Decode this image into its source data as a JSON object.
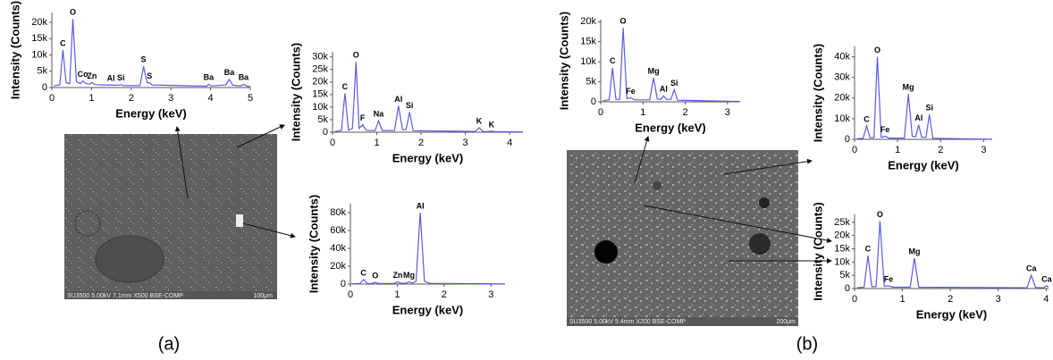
{
  "chart_data": [
    {
      "type": "line",
      "y_label": "Intensity (Counts)",
      "x_label": "Energy (keV)",
      "color": "#5a5ae6",
      "xlim": [
        0,
        5
      ],
      "ylim": [
        0,
        23000
      ],
      "xticks": [
        0,
        1,
        2,
        3,
        4,
        5
      ],
      "yticks": [
        0,
        {
          "value": 5000,
          "label": "5k"
        },
        {
          "value": 10000,
          "label": "10k"
        },
        {
          "value": 15000,
          "label": "15k"
        },
        {
          "value": 20000,
          "label": "20k"
        }
      ],
      "x": [
        0.05,
        0.2,
        0.28,
        0.36,
        0.45,
        0.53,
        0.62,
        0.72,
        0.78,
        0.86,
        0.95,
        1.01,
        1.08,
        1.42,
        1.49,
        1.56,
        1.68,
        1.74,
        1.8,
        2.22,
        2.31,
        2.4,
        2.46,
        2.52,
        3.9,
        3.95,
        4.02,
        4.38,
        4.47,
        4.56,
        4.76,
        4.83,
        4.92,
        5.0
      ],
      "values": [
        500,
        800,
        11500,
        1500,
        1200,
        21000,
        1800,
        1200,
        2000,
        1200,
        1000,
        1500,
        900,
        700,
        800,
        700,
        700,
        900,
        600,
        600,
        6500,
        1500,
        1500,
        800,
        400,
        1000,
        500,
        800,
        2500,
        700,
        500,
        1000,
        400,
        300
      ],
      "labels": [
        null,
        null,
        "C",
        null,
        null,
        "O",
        null,
        null,
        "Co",
        null,
        null,
        "Zn",
        null,
        null,
        "Al",
        null,
        null,
        "Si",
        null,
        null,
        "S",
        null,
        "S",
        null,
        null,
        "Ba",
        null,
        null,
        "Ba",
        null,
        null,
        "Ba",
        null,
        null
      ]
    },
    {
      "type": "line",
      "y_label": "Intensity (Counts)",
      "x_label": "Energy (keV)",
      "color": "#5a5ae6",
      "xlim": [
        0,
        4.3
      ],
      "ylim": [
        0,
        32000
      ],
      "xticks": [
        0,
        1,
        2,
        3,
        4
      ],
      "yticks": [
        0,
        {
          "value": 5000,
          "label": "5k"
        },
        {
          "value": 10000,
          "label": "10k"
        },
        {
          "value": 15000,
          "label": "15k"
        },
        {
          "value": 20000,
          "label": "20k"
        },
        {
          "value": 25000,
          "label": "25k"
        },
        {
          "value": 30000,
          "label": "30k"
        }
      ],
      "x": [
        0.05,
        0.2,
        0.28,
        0.36,
        0.45,
        0.53,
        0.6,
        0.68,
        0.76,
        0.96,
        1.04,
        1.12,
        1.4,
        1.49,
        1.58,
        1.66,
        1.74,
        1.82,
        3.22,
        3.31,
        3.4,
        3.52,
        3.59,
        3.66,
        4.3
      ],
      "values": [
        300,
        600,
        15500,
        800,
        1500,
        28000,
        1500,
        3000,
        800,
        600,
        4500,
        700,
        600,
        10500,
        1000,
        1000,
        8000,
        600,
        300,
        1800,
        300,
        200,
        400,
        200,
        100
      ],
      "labels": [
        null,
        null,
        "C",
        null,
        null,
        "O",
        null,
        "F",
        null,
        null,
        "Na",
        null,
        null,
        "Al",
        null,
        null,
        "Si",
        null,
        null,
        "K",
        null,
        null,
        "K",
        null,
        null
      ]
    },
    {
      "type": "line",
      "y_label": "Intensity (Counts)",
      "x_label": "Energy (keV)",
      "color": "#5a5ae6",
      "xlim": [
        0,
        3.3
      ],
      "ylim": [
        0,
        90000
      ],
      "xticks": [
        0,
        1,
        2,
        3
      ],
      "yticks": [
        0,
        {
          "value": 20000,
          "label": "20k"
        },
        {
          "value": 40000,
          "label": "40k"
        },
        {
          "value": 60000,
          "label": "60k"
        },
        {
          "value": 80000,
          "label": "80k"
        }
      ],
      "x": [
        0.05,
        0.2,
        0.28,
        0.36,
        0.45,
        0.53,
        0.6,
        0.94,
        1.01,
        1.08,
        1.18,
        1.25,
        1.32,
        1.4,
        1.49,
        1.58,
        1.7,
        3.3
      ],
      "values": [
        300,
        500,
        5000,
        600,
        600,
        2000,
        600,
        800,
        2500,
        900,
        900,
        2500,
        1200,
        3000,
        80000,
        3000,
        800,
        200
      ],
      "labels": [
        null,
        null,
        "C",
        null,
        null,
        "O",
        null,
        null,
        "Zn",
        null,
        null,
        "Mg",
        null,
        null,
        "Al",
        null,
        null,
        null
      ]
    },
    {
      "type": "line",
      "y_label": "Intensity (Counts)",
      "x_label": "Energy (keV)",
      "color": "#5a5ae6",
      "xlim": [
        0,
        3.3
      ],
      "ylim": [
        0,
        20500
      ],
      "xticks": [
        0,
        1,
        2,
        3
      ],
      "yticks": [
        0,
        {
          "value": 5000,
          "label": "5k"
        },
        {
          "value": 10000,
          "label": "10k"
        },
        {
          "value": 15000,
          "label": "15k"
        },
        {
          "value": 20000,
          "label": "20k"
        }
      ],
      "x": [
        0.05,
        0.2,
        0.28,
        0.36,
        0.45,
        0.53,
        0.62,
        0.71,
        0.8,
        1.16,
        1.25,
        1.34,
        1.42,
        1.49,
        1.56,
        1.66,
        1.74,
        1.82,
        3.3
      ],
      "values": [
        300,
        500,
        8500,
        600,
        600,
        18500,
        800,
        1000,
        500,
        500,
        6000,
        700,
        600,
        1500,
        600,
        600,
        3000,
        400,
        100
      ],
      "labels": [
        null,
        null,
        "C",
        null,
        null,
        "O",
        null,
        "Fe",
        null,
        null,
        "Mg",
        null,
        null,
        "Al",
        null,
        null,
        "Si",
        null,
        null
      ]
    },
    {
      "type": "line",
      "y_label": "Intensity (Counts)",
      "x_label": "Energy (keV)",
      "color": "#5a5ae6",
      "xlim": [
        0,
        3.2
      ],
      "ylim": [
        0,
        45000
      ],
      "xticks": [
        0,
        1,
        2,
        3
      ],
      "yticks": [
        0,
        {
          "value": 10000,
          "label": "10k"
        },
        {
          "value": 20000,
          "label": "20k"
        },
        {
          "value": 30000,
          "label": "30k"
        },
        {
          "value": 40000,
          "label": "40k"
        }
      ],
      "x": [
        0.05,
        0.2,
        0.28,
        0.36,
        0.45,
        0.53,
        0.62,
        0.71,
        0.8,
        1.16,
        1.25,
        1.34,
        1.42,
        1.49,
        1.56,
        1.66,
        1.74,
        1.82,
        3.2
      ],
      "values": [
        300,
        500,
        6500,
        800,
        800,
        40000,
        1000,
        1500,
        600,
        600,
        22000,
        1500,
        1200,
        7000,
        1000,
        1000,
        12000,
        500,
        100
      ],
      "labels": [
        null,
        null,
        "C",
        null,
        null,
        "O",
        null,
        "Fe",
        null,
        null,
        "Mg",
        null,
        null,
        "Al",
        null,
        null,
        "Si",
        null,
        null
      ]
    },
    {
      "type": "line",
      "y_label": "Intensity (Counts)",
      "x_label": "Energy (keV)",
      "color": "#5a5ae6",
      "xlim": [
        0,
        4.05
      ],
      "ylim": [
        0,
        28000
      ],
      "xticks": [
        0,
        1,
        2,
        3,
        4
      ],
      "yticks": [
        0,
        {
          "value": 5000,
          "label": "5k"
        },
        {
          "value": 10000,
          "label": "10k"
        },
        {
          "value": 15000,
          "label": "15k"
        },
        {
          "value": 20000,
          "label": "20k"
        },
        {
          "value": 25000,
          "label": "25k"
        }
      ],
      "x": [
        0.05,
        0.2,
        0.28,
        0.36,
        0.45,
        0.53,
        0.62,
        0.71,
        0.8,
        1.16,
        1.25,
        1.34,
        3.6,
        3.69,
        3.78,
        3.94,
        4.01,
        4.05
      ],
      "values": [
        300,
        500,
        12500,
        700,
        700,
        25500,
        800,
        1000,
        500,
        500,
        11500,
        500,
        300,
        5000,
        400,
        300,
        1000,
        600
      ],
      "labels": [
        null,
        null,
        "C",
        null,
        null,
        "O",
        null,
        "Fe",
        null,
        null,
        "Mg",
        null,
        null,
        "Ca",
        null,
        null,
        "Ca",
        null
      ]
    }
  ],
  "images": [
    {
      "caption": "SU3500 5.00kV 7.1mm X500 BSE-COMP",
      "scale": "100μm"
    },
    {
      "caption": "SU3500 5.00kV 5.4mm X200 BSE-COMP",
      "scale": "200μm"
    }
  ],
  "panels": [
    "(a)",
    "(b)"
  ]
}
